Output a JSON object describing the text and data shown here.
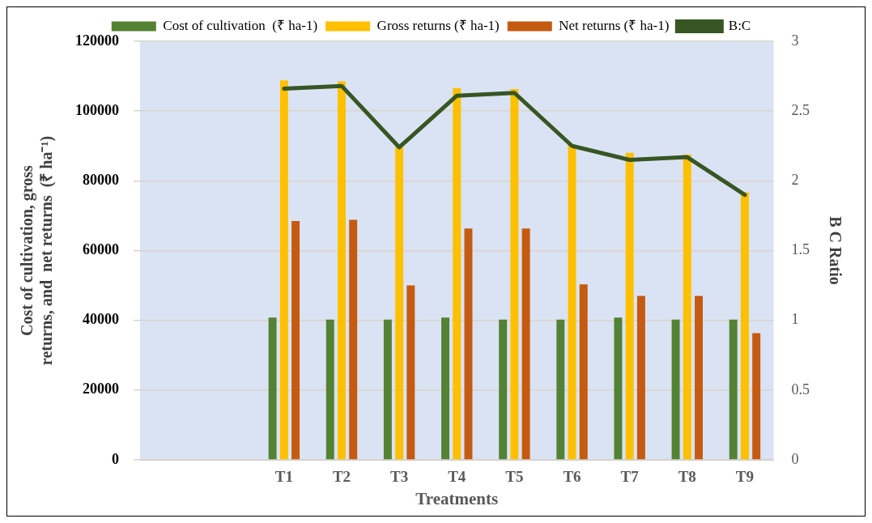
{
  "chart_data": {
    "type": "bar",
    "xlabel": "Treatments",
    "ylabel": "Cost of cultivation, gross returns, and  net returns  (₹ ha⁻¹)",
    "y2label": "B C Ratio",
    "categories": [
      null,
      null,
      "T1",
      "T2",
      "T3",
      "T4",
      "T5",
      "T6",
      "T7",
      "T8",
      "T9"
    ],
    "series": [
      {
        "name": "Cost of cultivation  (₹ ha-1)",
        "color": "#548235",
        "values": [
          null,
          null,
          40800,
          40200,
          40200,
          40800,
          40200,
          40200,
          40800,
          40200,
          40200
        ]
      },
      {
        "name": "Gross returns (₹ ha-1)",
        "color": "#ffc000",
        "values": [
          null,
          null,
          108800,
          108500,
          89700,
          106600,
          106300,
          90300,
          88000,
          87500,
          76700
        ]
      },
      {
        "name": "Net returns (₹ ha-1)",
        "color": "#c55a11",
        "values": [
          null,
          null,
          68500,
          68800,
          50000,
          66300,
          66300,
          50300,
          47000,
          47000,
          36300
        ]
      },
      {
        "name": "B:C",
        "type": "line",
        "axis": "y2",
        "color": "#375623",
        "values": [
          null,
          null,
          2.66,
          2.68,
          2.24,
          2.61,
          2.63,
          2.25,
          2.15,
          2.17,
          1.9
        ]
      }
    ],
    "ylim": [
      0,
      120000
    ],
    "yticks": [
      0,
      20000,
      40000,
      60000,
      80000,
      100000,
      120000
    ],
    "y2lim": [
      0,
      3
    ],
    "y2ticks": [
      0,
      0.5,
      1,
      1.5,
      2,
      2.5,
      3
    ],
    "grid": "y",
    "legend": "top",
    "marker": "none"
  }
}
